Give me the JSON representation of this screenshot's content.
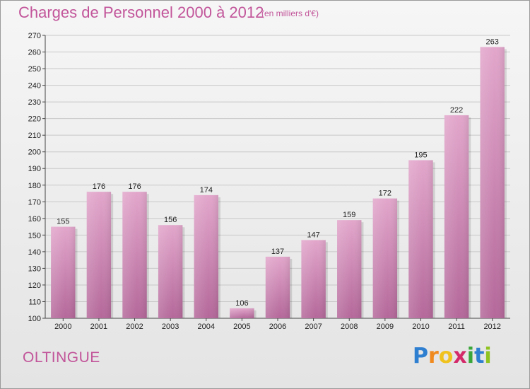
{
  "title": "Charges de Personnel 2000 à 2012",
  "subtitle": "(en milliers d'€)",
  "commune": "OLTINGUE",
  "logo": {
    "letters": [
      "P",
      "r",
      "o",
      "x",
      "i",
      "t",
      "i"
    ],
    "colors": [
      "#2f7fd0",
      "#f08a1e",
      "#f0c21e",
      "#d42a6a",
      "#3aa63a",
      "#2f7fd0",
      "#8fc31f"
    ]
  },
  "colors": {
    "bar": "#d78ab8",
    "bar_dark": "#b56a9a",
    "accent": "#c2559a"
  },
  "chart_data": {
    "type": "bar",
    "categories": [
      "2000",
      "2001",
      "2002",
      "2003",
      "2004",
      "2005",
      "2006",
      "2007",
      "2008",
      "2009",
      "2010",
      "2011",
      "2012"
    ],
    "values": [
      155,
      176,
      176,
      156,
      174,
      106,
      137,
      147,
      159,
      172,
      195,
      222,
      263
    ],
    "ylim": [
      100,
      270
    ],
    "yticks": [
      100,
      110,
      120,
      130,
      140,
      150,
      160,
      170,
      180,
      190,
      200,
      210,
      220,
      230,
      240,
      250,
      260,
      270
    ],
    "grid": true,
    "title": "Charges de Personnel 2000 à 2012",
    "xlabel": "",
    "ylabel": ""
  }
}
